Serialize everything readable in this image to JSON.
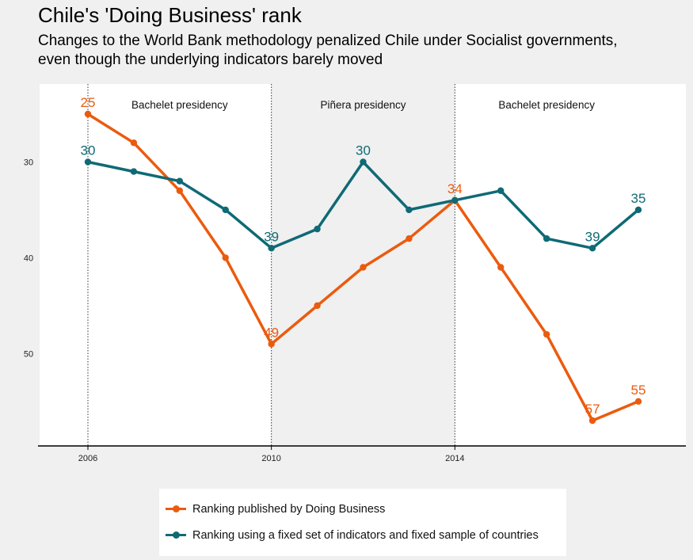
{
  "title": "Chile's 'Doing Business' rank",
  "subtitle_lines": [
    "Changes to the World Bank methodology penalized Chile under Socialist governments,",
    "even though the underlying indicators barely moved"
  ],
  "colors": {
    "published": "#eb5b0e",
    "fixed": "#0f6a75",
    "panel_white": "#ffffff",
    "panel_grey": "#f0f0f0"
  },
  "chart_data": {
    "type": "line",
    "x": [
      2006,
      2007,
      2008,
      2009,
      2010,
      2011,
      2012,
      2013,
      2014,
      2015,
      2016,
      2017,
      2018
    ],
    "xlim": [
      2006,
      2018
    ],
    "ylim": [
      25,
      57
    ],
    "y_inverted": true,
    "x_ticks": [
      "2006",
      "2010",
      "2014"
    ],
    "y_ticks": [
      "30",
      "40",
      "50"
    ],
    "series": [
      {
        "key": "published",
        "name": "Ranking published by Doing Business",
        "values": [
          25,
          28,
          33,
          40,
          49,
          45,
          41,
          38,
          34,
          41,
          48,
          57,
          55
        ],
        "labels": [
          {
            "x": 2006,
            "y": 25,
            "text": "25"
          },
          {
            "x": 2010,
            "y": 49,
            "text": "49"
          },
          {
            "x": 2014,
            "y": 34,
            "text": "34"
          },
          {
            "x": 2017,
            "y": 57,
            "text": "57"
          },
          {
            "x": 2018,
            "y": 55,
            "text": "55"
          }
        ]
      },
      {
        "key": "fixed",
        "name": "Ranking using a fixed set of indicators and fixed sample of countries",
        "values": [
          30,
          31,
          32,
          35,
          39,
          37,
          30,
          35,
          34,
          33,
          38,
          39,
          35
        ],
        "labels": [
          {
            "x": 2006,
            "y": 30,
            "text": "30"
          },
          {
            "x": 2010,
            "y": 39,
            "text": "39"
          },
          {
            "x": 2012,
            "y": 30,
            "text": "30"
          },
          {
            "x": 2017,
            "y": 39,
            "text": "39"
          },
          {
            "x": 2018,
            "y": 35,
            "text": "35"
          }
        ]
      }
    ],
    "periods": [
      {
        "label": "Bachelet presidency",
        "start": 2006,
        "end": 2010
      },
      {
        "label": "Piñera presidency",
        "start": 2010,
        "end": 2014
      },
      {
        "label": "Bachelet presidency",
        "start": 2014,
        "end": 2018
      }
    ]
  },
  "legend": {
    "published_label": "Ranking published by Doing Business",
    "fixed_label": "Ranking using a fixed set of indicators and fixed sample of countries"
  }
}
